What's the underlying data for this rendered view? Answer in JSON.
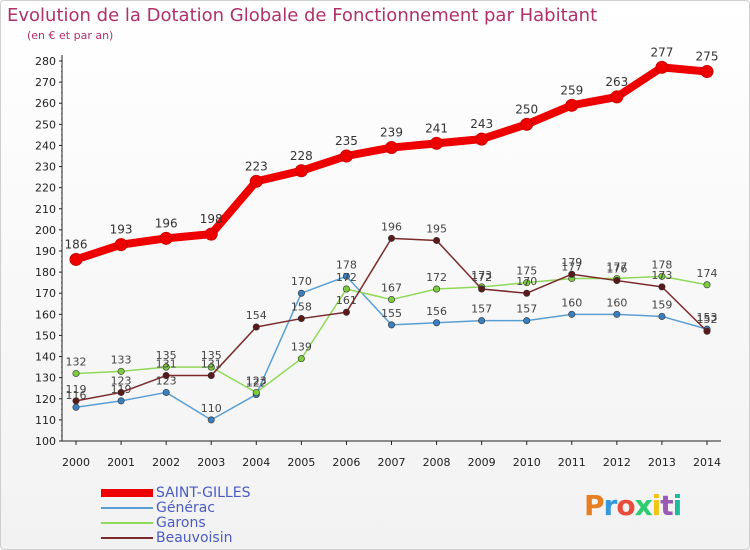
{
  "header": {
    "title": "Evolution de la Dotation Globale de Fonctionnement par Habitant",
    "subtitle": "(en € et par an)"
  },
  "logo": {
    "text": "Proxiti",
    "colors": [
      "#e67e22",
      "#3498db",
      "#e74c3c",
      "#2ecc71",
      "#f1c40f",
      "#9b59b6",
      "#1abc9c"
    ]
  },
  "chart_data": {
    "type": "line",
    "title": "Evolution de la Dotation Globale de Fonctionnement par Habitant",
    "subtitle": "(en € et par an)",
    "x": [
      2000,
      2001,
      2002,
      2003,
      2004,
      2005,
      2006,
      2007,
      2008,
      2009,
      2010,
      2011,
      2012,
      2013,
      2014
    ],
    "ylim": [
      100,
      280
    ],
    "yticks": [
      100,
      110,
      120,
      130,
      140,
      150,
      160,
      170,
      180,
      190,
      200,
      210,
      220,
      230,
      240,
      250,
      260,
      270,
      280
    ],
    "grid": false,
    "legend_position": "bottom-left",
    "series": [
      {
        "name": "SAINT-GILLES",
        "color": "#ee0000",
        "marker": "#ee0000",
        "values": [
          186,
          193,
          196,
          198,
          223,
          228,
          235,
          239,
          241,
          243,
          250,
          259,
          263,
          277,
          275
        ]
      },
      {
        "name": "Générac",
        "color": "#5a9fd4",
        "marker": "#3a7fc0",
        "values": [
          116,
          119,
          123,
          110,
          122,
          170,
          178,
          155,
          156,
          157,
          157,
          160,
          160,
          159,
          153
        ]
      },
      {
        "name": "Garons",
        "color": "#8fd85a",
        "marker": "#7ccc3e",
        "values": [
          132,
          133,
          135,
          135,
          123,
          139,
          172,
          167,
          172,
          173,
          175,
          177,
          177,
          178,
          174
        ]
      },
      {
        "name": "Beauvoisin",
        "color": "#7a2a2a",
        "marker": "#5a1a1a",
        "values": [
          119,
          123,
          131,
          131,
          154,
          158,
          161,
          196,
          195,
          172,
          170,
          179,
          176,
          173,
          152
        ]
      }
    ]
  }
}
